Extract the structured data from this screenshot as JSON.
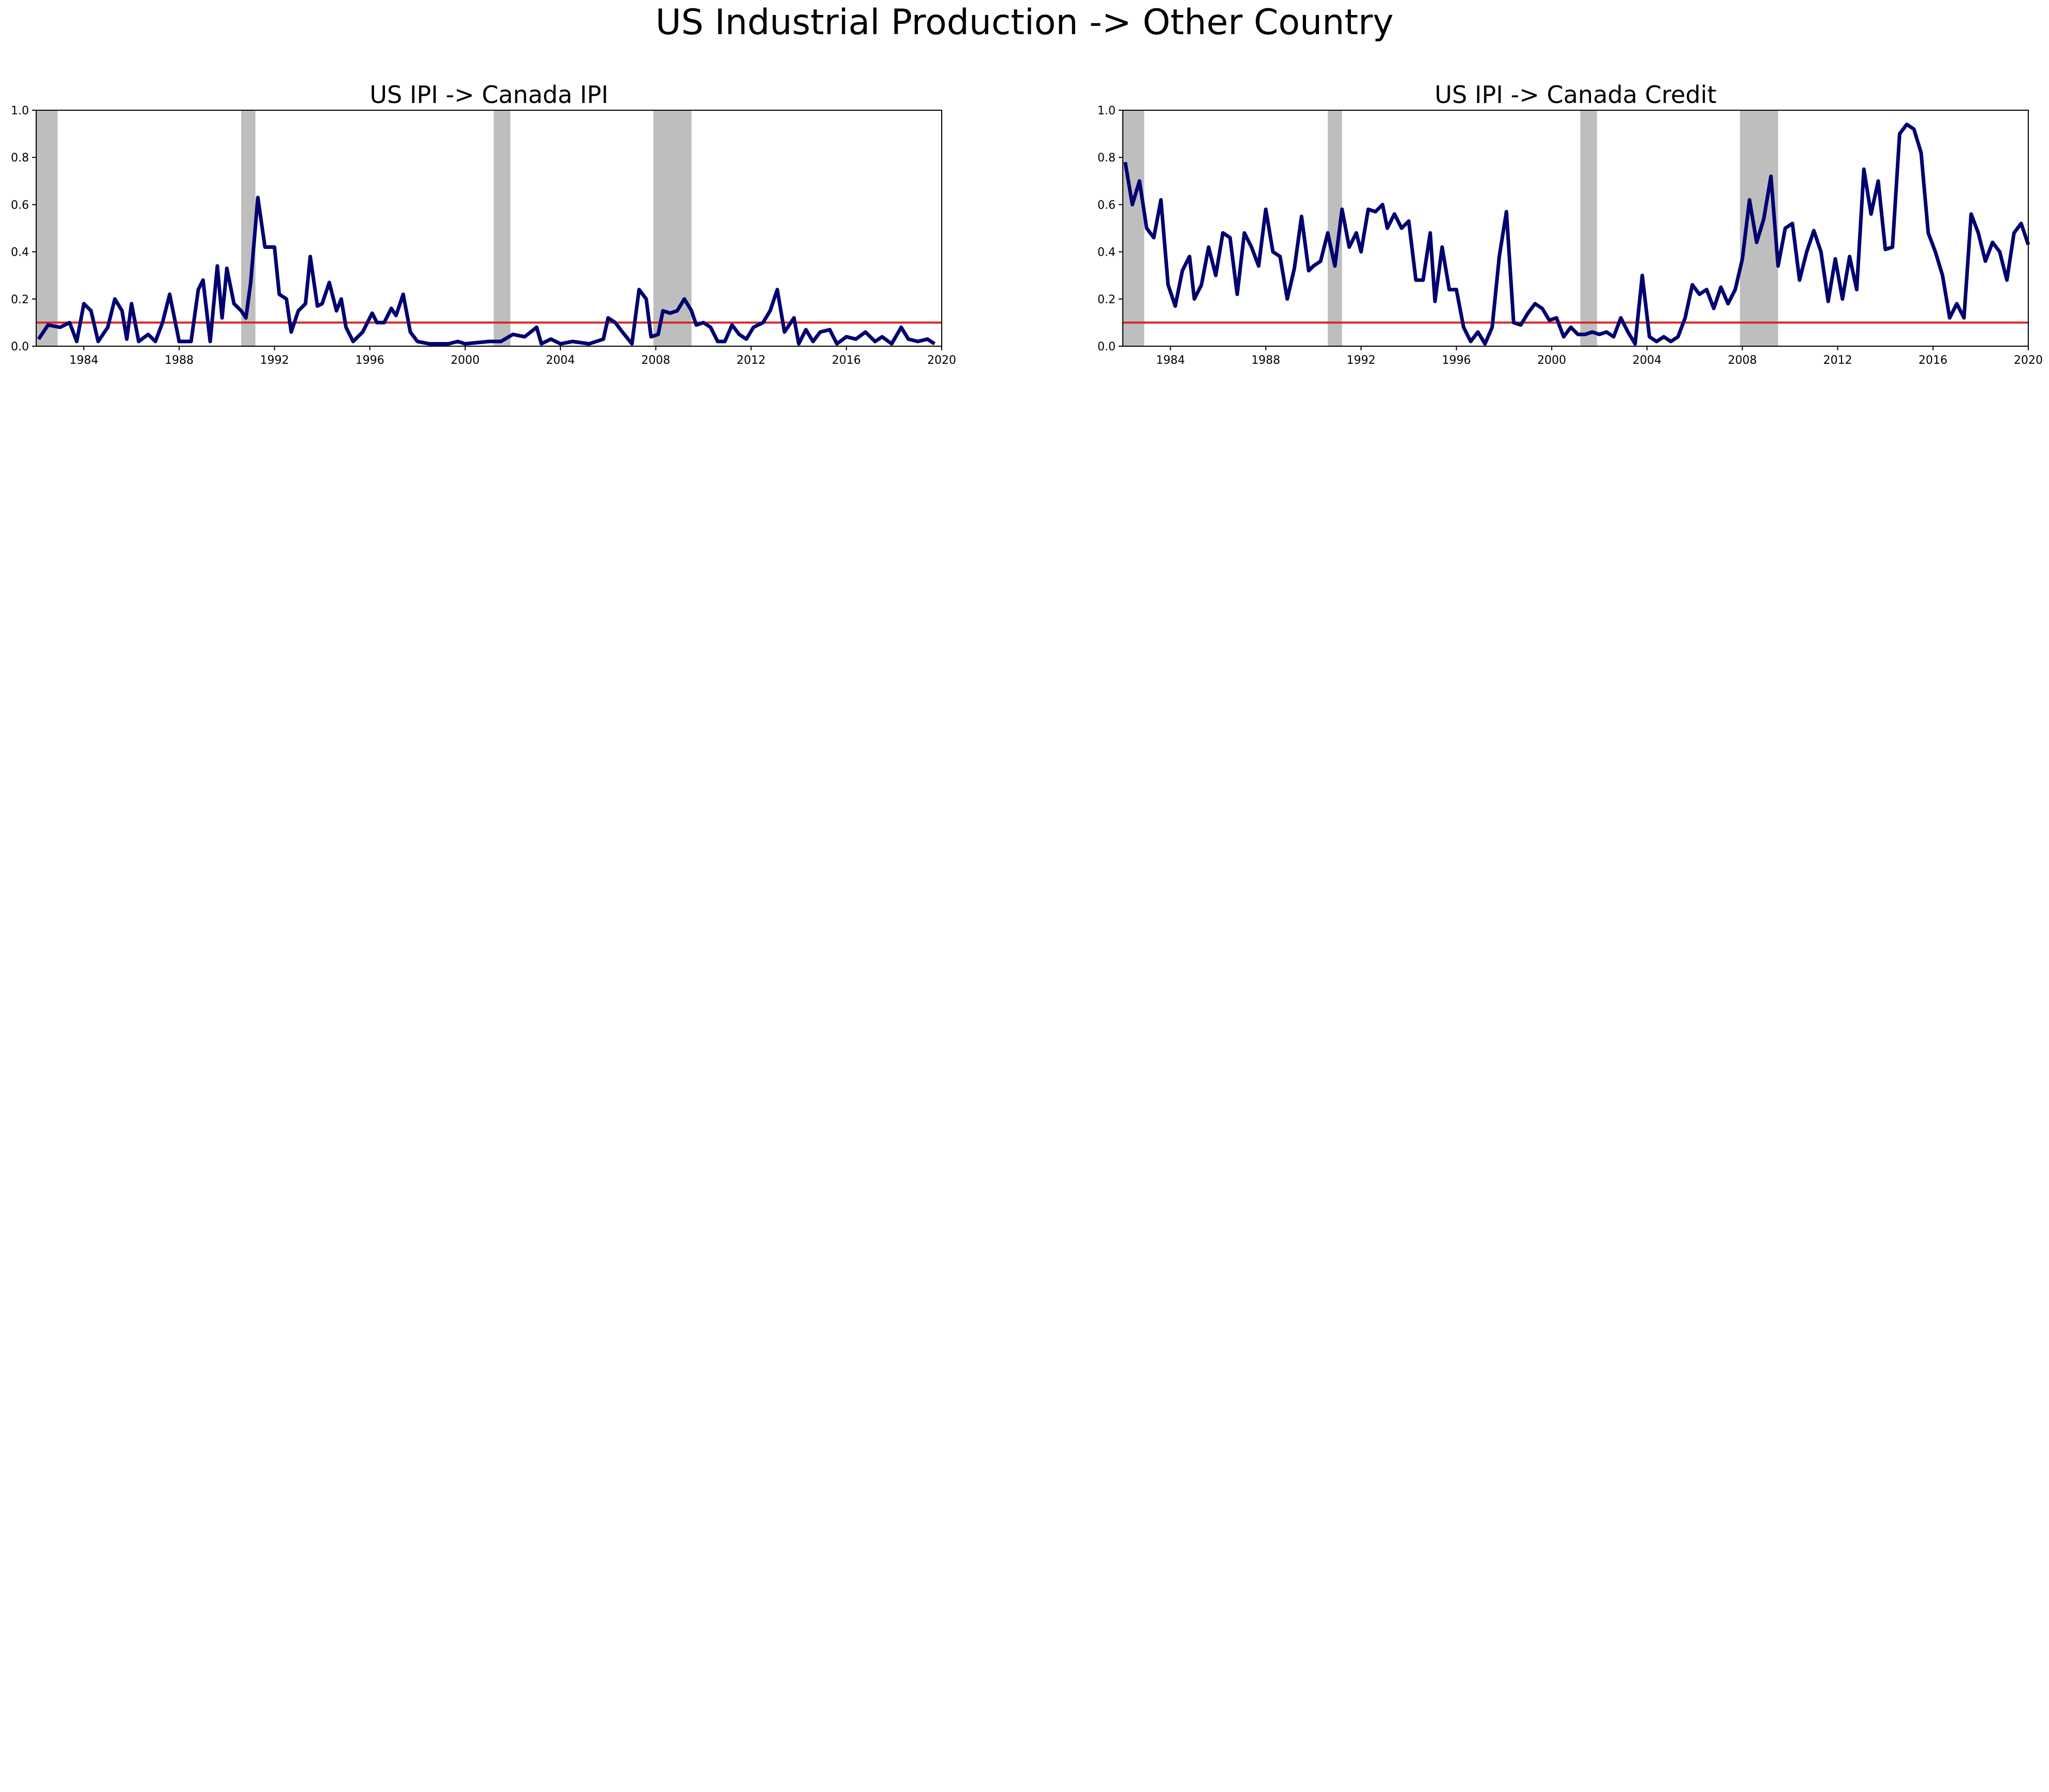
{
  "title": "US Industrial Production -> Other Country",
  "recession_bands": [
    [
      1981.6,
      1982.9
    ],
    [
      1990.6,
      1991.2
    ],
    [
      2001.2,
      2001.9
    ],
    [
      2007.9,
      2009.5
    ]
  ],
  "colors": {
    "series": "#000070",
    "threshold": "#d62728",
    "band": "#bebebe"
  },
  "xticks": [
    "1984",
    "1988",
    "1992",
    "1996",
    "2000",
    "2004",
    "2008",
    "2012",
    "2016",
    "2020"
  ],
  "yticks": [
    "0.0",
    "0.2",
    "0.4",
    "0.6",
    "0.8",
    "1.0"
  ],
  "chart_data": [
    {
      "type": "line",
      "title": "US IPI -> Canada IPI",
      "xlim": [
        1982,
        2020
      ],
      "ylim": [
        0,
        1
      ],
      "threshold": 0.1,
      "points": [
        [
          1982.1,
          0.03
        ],
        [
          1982.5,
          0.09
        ],
        [
          1983,
          0.08
        ],
        [
          1983.4,
          0.1
        ],
        [
          1983.7,
          0.02
        ],
        [
          1984,
          0.18
        ],
        [
          1984.3,
          0.15
        ],
        [
          1984.6,
          0.02
        ],
        [
          1985,
          0.08
        ],
        [
          1985.3,
          0.2
        ],
        [
          1985.6,
          0.15
        ],
        [
          1985.8,
          0.03
        ],
        [
          1986,
          0.18
        ],
        [
          1986.3,
          0.02
        ],
        [
          1986.7,
          0.05
        ],
        [
          1987,
          0.02
        ],
        [
          1987.3,
          0.1
        ],
        [
          1987.6,
          0.22
        ],
        [
          1988,
          0.02
        ],
        [
          1988.5,
          0.02
        ],
        [
          1988.8,
          0.24
        ],
        [
          1989,
          0.28
        ],
        [
          1989.3,
          0.02
        ],
        [
          1989.6,
          0.34
        ],
        [
          1989.8,
          0.12
        ],
        [
          1990,
          0.33
        ],
        [
          1990.3,
          0.18
        ],
        [
          1990.6,
          0.15
        ],
        [
          1990.8,
          0.12
        ],
        [
          1991,
          0.27
        ],
        [
          1991.3,
          0.63
        ],
        [
          1991.6,
          0.42
        ],
        [
          1992,
          0.42
        ],
        [
          1992.2,
          0.22
        ],
        [
          1992.5,
          0.2
        ],
        [
          1992.7,
          0.06
        ],
        [
          1993,
          0.15
        ],
        [
          1993.3,
          0.18
        ],
        [
          1993.5,
          0.38
        ],
        [
          1993.8,
          0.17
        ],
        [
          1994,
          0.18
        ],
        [
          1994.3,
          0.27
        ],
        [
          1994.6,
          0.15
        ],
        [
          1994.8,
          0.2
        ],
        [
          1995,
          0.08
        ],
        [
          1995.3,
          0.02
        ],
        [
          1995.7,
          0.06
        ],
        [
          1996.1,
          0.14
        ],
        [
          1996.3,
          0.1
        ],
        [
          1996.6,
          0.1
        ],
        [
          1996.9,
          0.16
        ],
        [
          1997.1,
          0.13
        ],
        [
          1997.4,
          0.22
        ],
        [
          1997.7,
          0.06
        ],
        [
          1998,
          0.02
        ],
        [
          1998.5,
          0.01
        ],
        [
          1999.3,
          0.01
        ],
        [
          1999.7,
          0.02
        ],
        [
          2000,
          0.01
        ],
        [
          2001,
          0.02
        ],
        [
          2001.5,
          0.02
        ],
        [
          2002,
          0.05
        ],
        [
          2002.5,
          0.04
        ],
        [
          2003,
          0.08
        ],
        [
          2003.2,
          0.01
        ],
        [
          2003.6,
          0.03
        ],
        [
          2004,
          0.01
        ],
        [
          2004.5,
          0.02
        ],
        [
          2005.2,
          0.01
        ],
        [
          2005.8,
          0.03
        ],
        [
          2006,
          0.12
        ],
        [
          2006.3,
          0.1
        ],
        [
          2006.6,
          0.06
        ],
        [
          2007,
          0.01
        ],
        [
          2007.3,
          0.24
        ],
        [
          2007.6,
          0.2
        ],
        [
          2007.8,
          0.04
        ],
        [
          2008.1,
          0.05
        ],
        [
          2008.3,
          0.15
        ],
        [
          2008.6,
          0.14
        ],
        [
          2008.9,
          0.15
        ],
        [
          2009.2,
          0.2
        ],
        [
          2009.5,
          0.15
        ],
        [
          2009.7,
          0.09
        ],
        [
          2010,
          0.1
        ],
        [
          2010.3,
          0.08
        ],
        [
          2010.6,
          0.02
        ],
        [
          2010.9,
          0.02
        ],
        [
          2011.2,
          0.09
        ],
        [
          2011.5,
          0.05
        ],
        [
          2011.8,
          0.03
        ],
        [
          2012.1,
          0.08
        ],
        [
          2012.5,
          0.1
        ],
        [
          2012.8,
          0.15
        ],
        [
          2013.1,
          0.24
        ],
        [
          2013.4,
          0.06
        ],
        [
          2013.8,
          0.12
        ],
        [
          2014,
          0.01
        ],
        [
          2014.3,
          0.07
        ],
        [
          2014.6,
          0.02
        ],
        [
          2014.9,
          0.06
        ],
        [
          2015.3,
          0.07
        ],
        [
          2015.6,
          0.01
        ],
        [
          2016,
          0.04
        ],
        [
          2016.4,
          0.03
        ],
        [
          2016.8,
          0.06
        ],
        [
          2017.2,
          0.02
        ],
        [
          2017.5,
          0.04
        ],
        [
          2017.9,
          0.01
        ],
        [
          2018.3,
          0.08
        ],
        [
          2018.6,
          0.03
        ],
        [
          2019,
          0.02
        ],
        [
          2019.4,
          0.03
        ],
        [
          2019.7,
          0.01
        ]
      ]
    },
    {
      "type": "line",
      "title": "US IPI -> Canada Credit",
      "xlim": [
        1982,
        2020
      ],
      "ylim": [
        0,
        1
      ],
      "threshold": 0.1,
      "points": [
        [
          1982.1,
          0.78
        ],
        [
          1982.4,
          0.6
        ],
        [
          1982.7,
          0.7
        ],
        [
          1983,
          0.5
        ],
        [
          1983.3,
          0.46
        ],
        [
          1983.6,
          0.62
        ],
        [
          1983.9,
          0.26
        ],
        [
          1984.2,
          0.17
        ],
        [
          1984.5,
          0.32
        ],
        [
          1984.8,
          0.38
        ],
        [
          1985,
          0.2
        ],
        [
          1985.3,
          0.26
        ],
        [
          1985.6,
          0.42
        ],
        [
          1985.9,
          0.3
        ],
        [
          1986.2,
          0.48
        ],
        [
          1986.5,
          0.46
        ],
        [
          1986.8,
          0.22
        ],
        [
          1987.1,
          0.48
        ],
        [
          1987.4,
          0.42
        ],
        [
          1987.7,
          0.34
        ],
        [
          1988,
          0.58
        ],
        [
          1988.3,
          0.4
        ],
        [
          1988.6,
          0.38
        ],
        [
          1988.9,
          0.2
        ],
        [
          1989.2,
          0.33
        ],
        [
          1989.5,
          0.55
        ],
        [
          1989.8,
          0.32
        ],
        [
          1990,
          0.34
        ],
        [
          1990.3,
          0.36
        ],
        [
          1990.6,
          0.48
        ],
        [
          1990.9,
          0.34
        ],
        [
          1991.2,
          0.58
        ],
        [
          1991.5,
          0.42
        ],
        [
          1991.8,
          0.48
        ],
        [
          1992,
          0.4
        ],
        [
          1992.3,
          0.58
        ],
        [
          1992.6,
          0.57
        ],
        [
          1992.9,
          0.6
        ],
        [
          1993.1,
          0.5
        ],
        [
          1993.4,
          0.56
        ],
        [
          1993.7,
          0.5
        ],
        [
          1994,
          0.53
        ],
        [
          1994.3,
          0.28
        ],
        [
          1994.6,
          0.28
        ],
        [
          1994.9,
          0.48
        ],
        [
          1995.1,
          0.19
        ],
        [
          1995.4,
          0.42
        ],
        [
          1995.7,
          0.24
        ],
        [
          1996,
          0.24
        ],
        [
          1996.3,
          0.08
        ],
        [
          1996.6,
          0.02
        ],
        [
          1996.9,
          0.06
        ],
        [
          1997.2,
          0.01
        ],
        [
          1997.5,
          0.08
        ],
        [
          1997.8,
          0.38
        ],
        [
          1998.1,
          0.57
        ],
        [
          1998.4,
          0.1
        ],
        [
          1998.7,
          0.09
        ],
        [
          1999,
          0.14
        ],
        [
          1999.3,
          0.18
        ],
        [
          1999.6,
          0.16
        ],
        [
          1999.9,
          0.11
        ],
        [
          2000.2,
          0.12
        ],
        [
          2000.5,
          0.04
        ],
        [
          2000.8,
          0.08
        ],
        [
          2001.1,
          0.05
        ],
        [
          2001.4,
          0.05
        ],
        [
          2001.7,
          0.06
        ],
        [
          2002,
          0.05
        ],
        [
          2002.3,
          0.06
        ],
        [
          2002.6,
          0.04
        ],
        [
          2002.9,
          0.12
        ],
        [
          2003.2,
          0.06
        ],
        [
          2003.5,
          0.01
        ],
        [
          2003.8,
          0.3
        ],
        [
          2004.1,
          0.04
        ],
        [
          2004.4,
          0.02
        ],
        [
          2004.7,
          0.04
        ],
        [
          2005,
          0.02
        ],
        [
          2005.3,
          0.04
        ],
        [
          2005.6,
          0.12
        ],
        [
          2005.9,
          0.26
        ],
        [
          2006.2,
          0.22
        ],
        [
          2006.5,
          0.24
        ],
        [
          2006.8,
          0.16
        ],
        [
          2007.1,
          0.25
        ],
        [
          2007.4,
          0.18
        ],
        [
          2007.7,
          0.24
        ],
        [
          2008,
          0.37
        ],
        [
          2008.3,
          0.62
        ],
        [
          2008.6,
          0.44
        ],
        [
          2008.9,
          0.54
        ],
        [
          2009.2,
          0.72
        ],
        [
          2009.5,
          0.34
        ],
        [
          2009.8,
          0.5
        ],
        [
          2010.1,
          0.52
        ],
        [
          2010.4,
          0.28
        ],
        [
          2010.7,
          0.4
        ],
        [
          2011,
          0.49
        ],
        [
          2011.3,
          0.4
        ],
        [
          2011.6,
          0.19
        ],
        [
          2011.9,
          0.37
        ],
        [
          2012.2,
          0.2
        ],
        [
          2012.5,
          0.38
        ],
        [
          2012.8,
          0.24
        ],
        [
          2013.1,
          0.75
        ],
        [
          2013.4,
          0.56
        ],
        [
          2013.7,
          0.7
        ],
        [
          2014,
          0.41
        ],
        [
          2014.3,
          0.42
        ],
        [
          2014.6,
          0.9
        ],
        [
          2014.9,
          0.94
        ],
        [
          2015.2,
          0.92
        ],
        [
          2015.5,
          0.82
        ],
        [
          2015.8,
          0.48
        ],
        [
          2016.1,
          0.4
        ],
        [
          2016.4,
          0.3
        ],
        [
          2016.7,
          0.12
        ],
        [
          2017,
          0.18
        ],
        [
          2017.3,
          0.12
        ],
        [
          2017.6,
          0.56
        ],
        [
          2017.9,
          0.48
        ],
        [
          2018.2,
          0.36
        ],
        [
          2018.5,
          0.44
        ],
        [
          2018.8,
          0.4
        ],
        [
          2019.1,
          0.28
        ],
        [
          2019.4,
          0.48
        ],
        [
          2019.7,
          0.52
        ],
        [
          2020,
          0.43
        ]
      ]
    }
  ]
}
